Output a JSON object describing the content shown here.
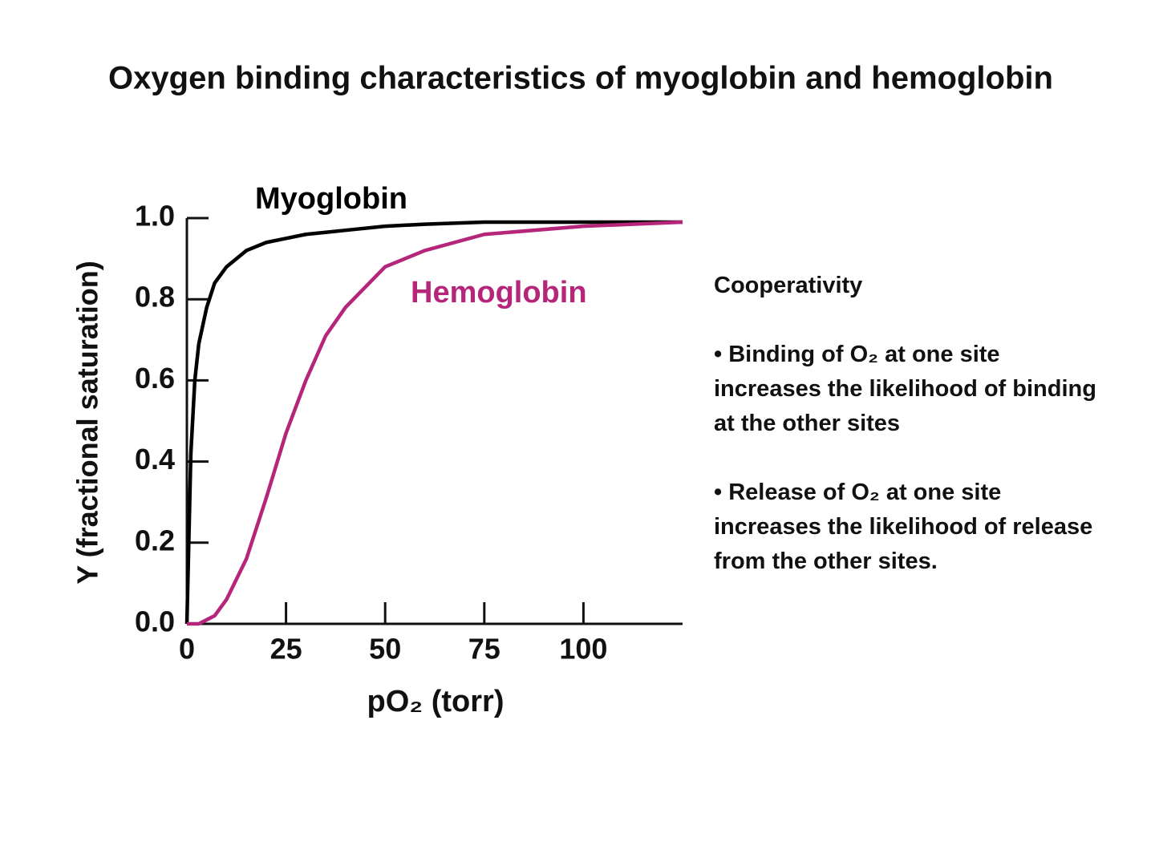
{
  "chart_data": {
    "type": "line",
    "title": "Oxygen binding characteristics of myoglobin and hemoglobin",
    "xlabel": "pO₂ (torr)",
    "ylabel": "Y (fractional saturation)",
    "x": [
      0,
      1,
      2,
      3,
      5,
      7,
      10,
      15,
      20,
      25,
      30,
      35,
      40,
      50,
      60,
      75,
      100,
      125
    ],
    "series": [
      {
        "name": "Myoglobin",
        "color": "#000000",
        "values": [
          0,
          0.42,
          0.6,
          0.69,
          0.78,
          0.84,
          0.88,
          0.92,
          0.94,
          0.95,
          0.96,
          0.965,
          0.97,
          0.98,
          0.985,
          0.99,
          0.99,
          0.99
        ]
      },
      {
        "name": "Hemoglobin",
        "color": "#b5267a",
        "values": [
          0,
          0,
          0,
          0,
          0.01,
          0.02,
          0.06,
          0.16,
          0.31,
          0.47,
          0.6,
          0.71,
          0.78,
          0.88,
          0.92,
          0.96,
          0.98,
          0.99
        ]
      }
    ],
    "xlim": [
      0,
      125
    ],
    "xticks": [
      0,
      25,
      50,
      75,
      100
    ],
    "ylim": [
      0,
      1
    ],
    "yticks": [
      {
        "value": 0,
        "label": "0.0"
      },
      0.2,
      0.4,
      0.6,
      0.8,
      {
        "value": 1,
        "label": "1.0"
      }
    ],
    "grid": false,
    "side_text": {
      "heading": "Cooperativity",
      "bullets": [
        "• Binding of O₂ at one site increases the likelihood of binding at the other sites",
        "• Release of O₂ at one site increases the likelihood of release from the other sites."
      ]
    }
  }
}
